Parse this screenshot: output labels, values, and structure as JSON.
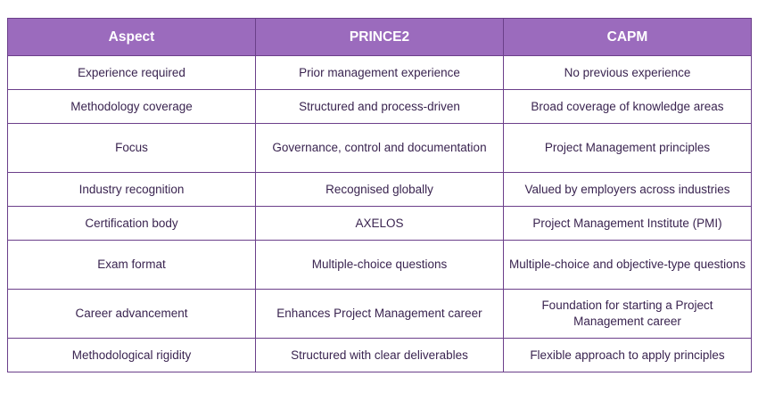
{
  "table": {
    "headers": [
      "Aspect",
      "PRINCE2",
      "CAPM"
    ],
    "rows": [
      [
        "Experience required",
        "Prior management experience",
        "No previous experience"
      ],
      [
        "Methodology coverage",
        "Structured and process-driven",
        "Broad coverage of knowledge areas"
      ],
      [
        "Focus",
        "Governance, control and documentation",
        "Project Management principles"
      ],
      [
        "Industry recognition",
        "Recognised globally",
        "Valued by employers across industries"
      ],
      [
        "Certification body",
        "AXELOS",
        "Project Management Institute (PMI)"
      ],
      [
        "Exam format",
        "Multiple-choice questions",
        "Multiple-choice and objective-type questions"
      ],
      [
        "Career advancement",
        "Enhances Project Management career",
        "Foundation for starting a Project Management career"
      ],
      [
        "Methodological rigidity",
        "Structured with clear deliverables",
        "Flexible approach to apply principles"
      ]
    ]
  },
  "colors": {
    "header_bg": "#9b6bbd",
    "header_text": "#ffffff",
    "border": "#6b3f8a",
    "cell_text": "#3a2450"
  }
}
